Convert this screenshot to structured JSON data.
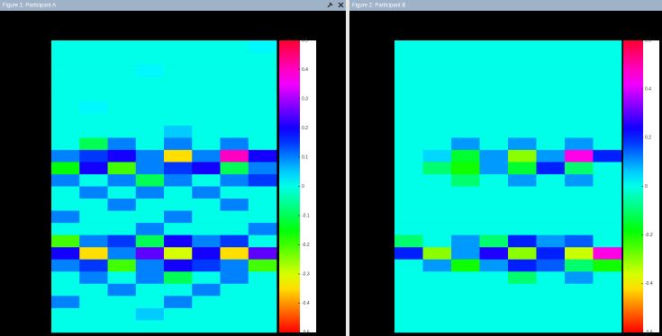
{
  "chart_data": [
    {
      "type": "heatmap",
      "title": "Figure 1: Participant A",
      "colormap": "hsv",
      "zlim": [
        -0.5,
        0.5
      ],
      "zticks": [
        0.5,
        0.4,
        0.3,
        0.2,
        0.1,
        0,
        -0.1,
        -0.2,
        -0.3,
        -0.4,
        -0.5
      ],
      "z": [
        [
          0,
          0,
          0,
          0,
          0,
          0,
          0,
          0.02
        ],
        [
          0,
          0,
          0,
          0,
          0,
          0,
          0,
          0
        ],
        [
          0,
          0,
          0,
          0.02,
          0,
          0,
          0,
          0
        ],
        [
          0,
          0,
          0,
          0,
          0,
          0,
          0,
          0
        ],
        [
          0,
          0,
          0,
          0,
          0,
          0,
          0,
          0
        ],
        [
          0,
          0.02,
          0,
          0,
          0,
          0,
          0,
          0
        ],
        [
          0,
          0,
          0,
          0,
          0,
          0,
          0,
          0
        ],
        [
          0,
          0,
          0,
          0,
          0.05,
          0,
          0,
          0
        ],
        [
          0,
          -0.1,
          0.1,
          0,
          0.1,
          0,
          0.1,
          0
        ],
        [
          0.1,
          0.15,
          0.2,
          0.1,
          -0.35,
          0.1,
          0.4,
          0.2
        ],
        [
          -0.15,
          0.2,
          -0.2,
          0.1,
          0.15,
          0.2,
          -0.1,
          0.1
        ],
        [
          0.1,
          0,
          0.1,
          -0.1,
          0.1,
          0,
          0.1,
          0.15
        ],
        [
          0,
          0.1,
          0,
          0.1,
          0,
          0.1,
          0,
          0
        ],
        [
          0,
          0,
          0.1,
          0,
          0,
          0,
          0.1,
          0
        ],
        [
          0.1,
          0,
          0,
          0,
          0.1,
          0,
          0,
          0
        ],
        [
          0,
          0,
          0,
          0.1,
          0,
          0,
          0,
          0.1
        ],
        [
          -0.2,
          0.1,
          0.15,
          -0.1,
          0.2,
          0.1,
          0.15,
          0
        ],
        [
          0.2,
          -0.35,
          0.1,
          0.25,
          -0.3,
          0.2,
          -0.35,
          0.25
        ],
        [
          0.1,
          0.15,
          -0.2,
          0.1,
          0.2,
          0.15,
          0.1,
          -0.2
        ],
        [
          0,
          0.1,
          0,
          0.1,
          -0.1,
          0,
          0.1,
          0
        ],
        [
          0,
          0,
          0.1,
          0,
          0,
          0.1,
          0,
          0
        ],
        [
          0.1,
          0,
          0,
          0,
          0.1,
          0,
          0,
          0
        ],
        [
          0,
          0,
          0,
          0.05,
          0,
          0,
          0,
          0
        ],
        [
          0,
          0,
          0,
          0,
          0,
          0,
          0,
          0
        ]
      ]
    },
    {
      "type": "heatmap",
      "title": "Figure 2: Participant B",
      "colormap": "hsv",
      "zlim": [
        -0.6,
        0.6
      ],
      "zticks": [
        0.6,
        0.4,
        0.2,
        0,
        -0.2,
        -0.4,
        -0.6
      ],
      "z": [
        [
          0,
          0,
          0,
          0,
          0,
          0,
          0,
          0
        ],
        [
          0,
          0,
          0,
          0,
          0,
          0,
          0,
          0
        ],
        [
          0,
          0,
          0,
          0,
          0,
          0,
          0,
          0
        ],
        [
          0,
          0,
          0,
          0,
          0,
          0,
          0,
          0
        ],
        [
          0,
          0,
          0,
          0,
          0,
          0,
          0,
          0
        ],
        [
          0,
          0,
          0,
          0,
          0,
          0,
          0,
          0
        ],
        [
          0,
          0,
          0,
          0,
          0,
          0,
          0,
          0
        ],
        [
          0,
          0,
          0,
          0,
          0,
          0,
          0,
          0
        ],
        [
          0,
          0,
          0.1,
          0,
          0.1,
          0,
          0.1,
          0
        ],
        [
          0,
          0.05,
          -0.15,
          0.1,
          -0.3,
          0.1,
          0.45,
          0.2
        ],
        [
          0,
          -0.1,
          -0.2,
          0.1,
          -0.15,
          0.2,
          -0.1,
          0
        ],
        [
          0,
          0,
          -0.1,
          0,
          0.1,
          0,
          0.1,
          0
        ],
        [
          0,
          0,
          0,
          0,
          0,
          0,
          0,
          0
        ],
        [
          0,
          0,
          0,
          0,
          0,
          0,
          0,
          0
        ],
        [
          0,
          0,
          0,
          0,
          0,
          0,
          0,
          0
        ],
        [
          0,
          0,
          0,
          0,
          0,
          0,
          0,
          0
        ],
        [
          -0.1,
          0,
          0.1,
          -0.1,
          0.2,
          0.1,
          0.15,
          0
        ],
        [
          0.2,
          -0.3,
          0.1,
          0.25,
          -0.3,
          0.2,
          -0.35,
          0.45
        ],
        [
          0,
          0.1,
          -0.2,
          0.1,
          0.2,
          0.15,
          -0.1,
          -0.2
        ],
        [
          0,
          0,
          0,
          0,
          -0.1,
          0,
          0.1,
          0
        ],
        [
          0,
          0,
          0,
          0,
          0,
          0,
          0,
          0
        ],
        [
          0,
          0,
          0,
          0,
          0,
          0,
          0,
          0
        ],
        [
          0,
          0,
          0,
          0,
          0,
          0,
          0,
          0
        ],
        [
          0,
          0,
          0,
          0,
          0,
          0,
          0,
          0
        ]
      ]
    }
  ]
}
